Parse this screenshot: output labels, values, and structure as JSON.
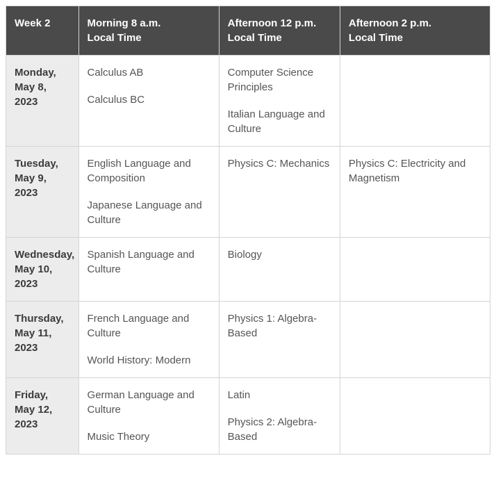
{
  "table": {
    "type": "table",
    "background_color": "#ffffff",
    "border_color": "#d4d4d4",
    "header_bg": "#4a4a4a",
    "header_text_color": "#ffffff",
    "day_col_bg": "#ececec",
    "body_text_color": "#555555",
    "font_family": "Arial, Helvetica, sans-serif",
    "base_fontsize": 15,
    "column_widths_pct": [
      15,
      29,
      25,
      31
    ],
    "columns": [
      {
        "line1": "Week 2",
        "line2": ""
      },
      {
        "line1": "Morning 8 a.m.",
        "line2": "Local Time"
      },
      {
        "line1": "Afternoon 12 p.m.",
        "line2": "Local Time"
      },
      {
        "line1": "Afternoon 2 p.m.",
        "line2": "Local Time"
      }
    ],
    "rows": [
      {
        "day": "Monday, May 8, 2023",
        "morning": [
          "Calculus AB",
          "Calculus BC"
        ],
        "afternoon12": [
          "Computer Science Principles",
          "Italian Language and Culture"
        ],
        "afternoon2": []
      },
      {
        "day": "Tuesday, May 9, 2023",
        "morning": [
          "English Language and Composition",
          "Japanese Language and Culture"
        ],
        "afternoon12": [
          "Physics C: Mechanics"
        ],
        "afternoon2": [
          "Physics C: Electricity and Magnetism"
        ]
      },
      {
        "day": "Wednesday, May 10, 2023",
        "morning": [
          "Spanish Language and Culture"
        ],
        "afternoon12": [
          "Biology"
        ],
        "afternoon2": []
      },
      {
        "day": "Thursday, May 11, 2023",
        "morning": [
          "French Language and Culture",
          "World History: Modern"
        ],
        "afternoon12": [
          "Physics 1: Algebra-Based"
        ],
        "afternoon2": []
      },
      {
        "day": "Friday, May 12, 2023",
        "morning": [
          "German Language and Culture",
          "Music Theory"
        ],
        "afternoon12": [
          "Latin",
          "Physics 2: Algebra-Based"
        ],
        "afternoon2": []
      }
    ]
  }
}
